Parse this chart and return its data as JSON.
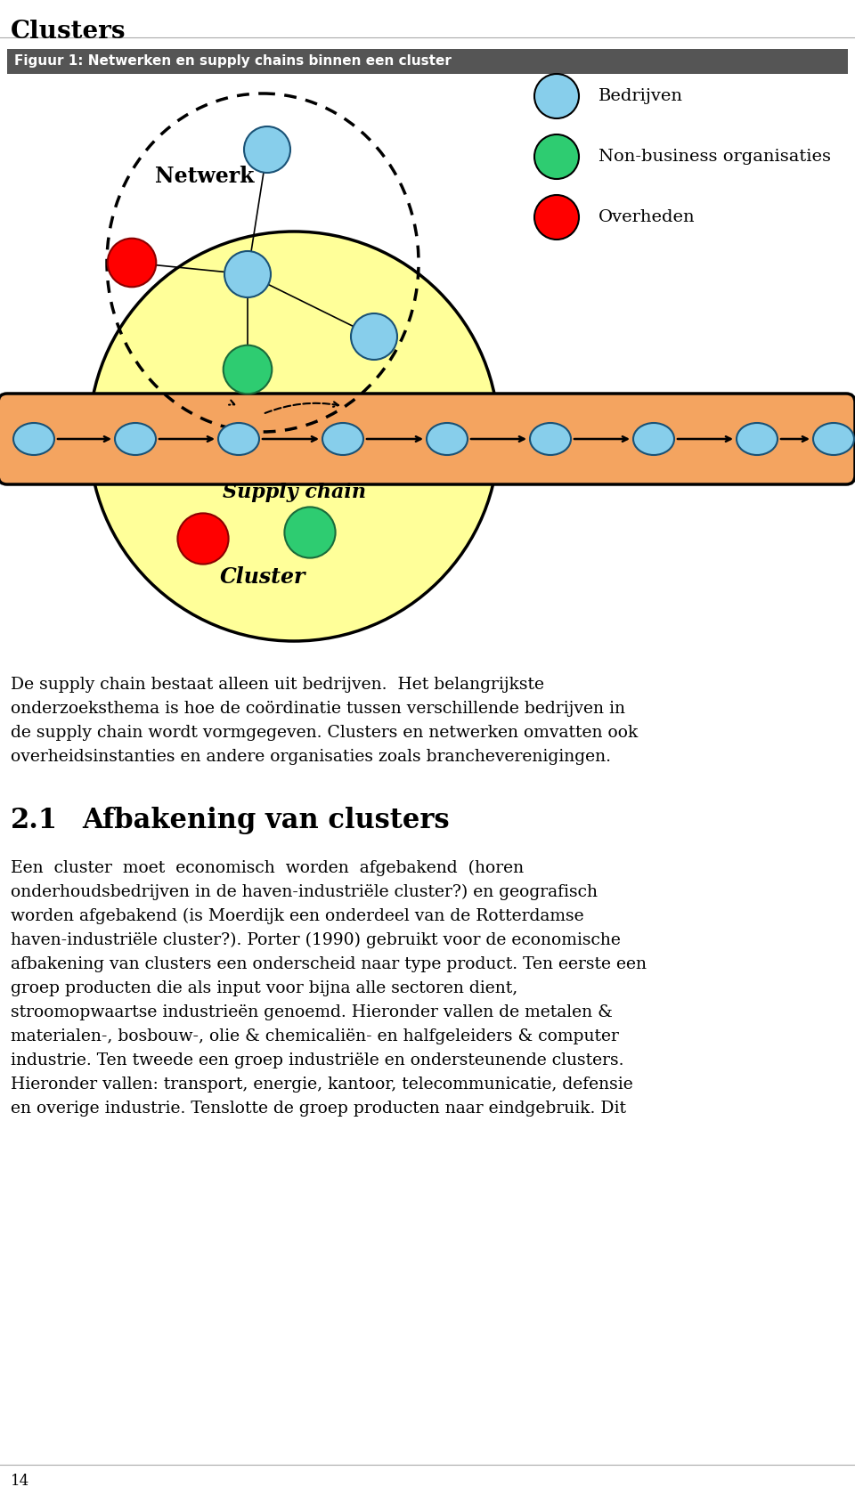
{
  "title": "Clusters",
  "fig_title": "Figuur 1: Netwerken en supply chains binnen een cluster",
  "fig_title_bg": "#555555",
  "fig_title_color": "#ffffff",
  "bg_color": "#ffffff",
  "page_number": "14",
  "legend_items": [
    {
      "label": "Bedrijven",
      "color": "#87CEEB"
    },
    {
      "label": "Non-business organisaties",
      "color": "#2ECC71"
    },
    {
      "label": "Overheden",
      "color": "#FF0000"
    }
  ],
  "blue": "#87CEEB",
  "green": "#2ECC71",
  "red": "#FF0000",
  "yellow": "#FFFF99",
  "orange_bg": "#F4A460"
}
